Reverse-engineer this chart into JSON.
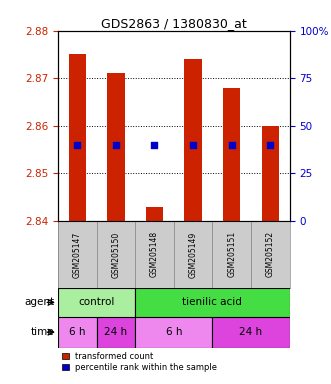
{
  "title": "GDS2863 / 1380830_at",
  "samples": [
    "GSM205147",
    "GSM205150",
    "GSM205148",
    "GSM205149",
    "GSM205151",
    "GSM205152"
  ],
  "bar_bottoms": [
    2.84,
    2.84,
    2.84,
    2.84,
    2.84,
    2.84
  ],
  "bar_tops": [
    2.875,
    2.871,
    2.843,
    2.874,
    2.868,
    2.86
  ],
  "blue_dots_y": [
    2.856,
    2.856,
    2.856,
    2.856,
    2.856,
    2.856
  ],
  "ylim": [
    2.84,
    2.88
  ],
  "yticks_left": [
    2.84,
    2.85,
    2.86,
    2.87,
    2.88
  ],
  "yticks_right": [
    0,
    25,
    50,
    75,
    100
  ],
  "bar_color": "#cc2200",
  "blue_color": "#0000cc",
  "agent_control_color": "#aaeea0",
  "agent_tienilic_color": "#44dd44",
  "time_light_color": "#ee88ee",
  "time_dark_color": "#dd44dd",
  "sample_bg": "#cccccc",
  "legend_red_label": "transformed count",
  "legend_blue_label": "percentile rank within the sample"
}
